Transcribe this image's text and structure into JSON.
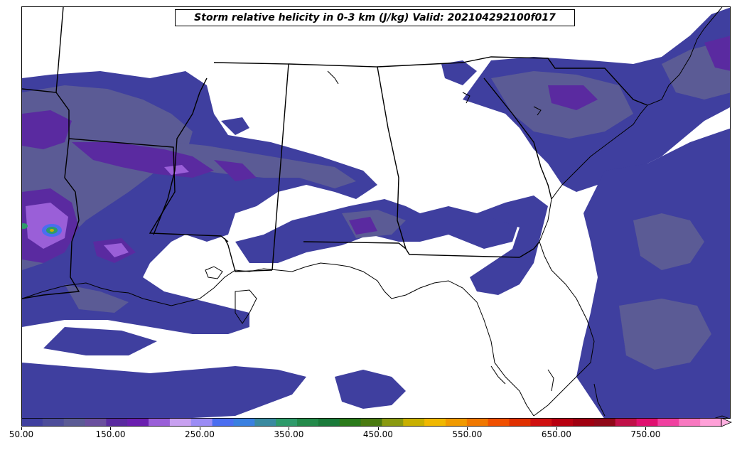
{
  "title": "Storm relative helicity in 0-3 km (J/kg) Valid: 202104292100f017",
  "colorbar": {
    "tick_labels": [
      "50.00",
      "150.00",
      "250.00",
      "350.00",
      "450.00",
      "550.00",
      "650.00",
      "750.00"
    ],
    "tick_values": [
      50,
      150,
      250,
      350,
      450,
      550,
      650,
      750
    ],
    "min": 50,
    "max": 835,
    "extend": "max",
    "colors": [
      "#3f3f9f",
      "#4d4d9a",
      "#5b5b95",
      "#6a4f9e",
      "#5a2aa0",
      "#6b1fb0",
      "#9a5fd8",
      "#c8a0f0",
      "#9b8cf5",
      "#4a6ef0",
      "#3a80e0",
      "#3a8aa0",
      "#2e9a6a",
      "#238a4a",
      "#1a7a3a",
      "#2a7a1a",
      "#4a7a10",
      "#8a9a10",
      "#c8b000",
      "#f0b800",
      "#f09a00",
      "#f07800",
      "#f05000",
      "#e03000",
      "#d01010",
      "#b80010",
      "#a00010",
      "#900818",
      "#c01048",
      "#e01070",
      "#f040a0",
      "#f878c0",
      "#ffa0d8"
    ],
    "extend_color": "#ffb0e0"
  },
  "map": {
    "region": "Southeastern United States",
    "fill_colors": {
      "low": "#3f3f9f",
      "mid": "#5b5b95",
      "high": "#5a2aa0",
      "higher": "#9a5fd8",
      "peak_green": "#2e9a6a",
      "peak_yellow": "#c8b000"
    },
    "boundary_color": "#000000"
  }
}
